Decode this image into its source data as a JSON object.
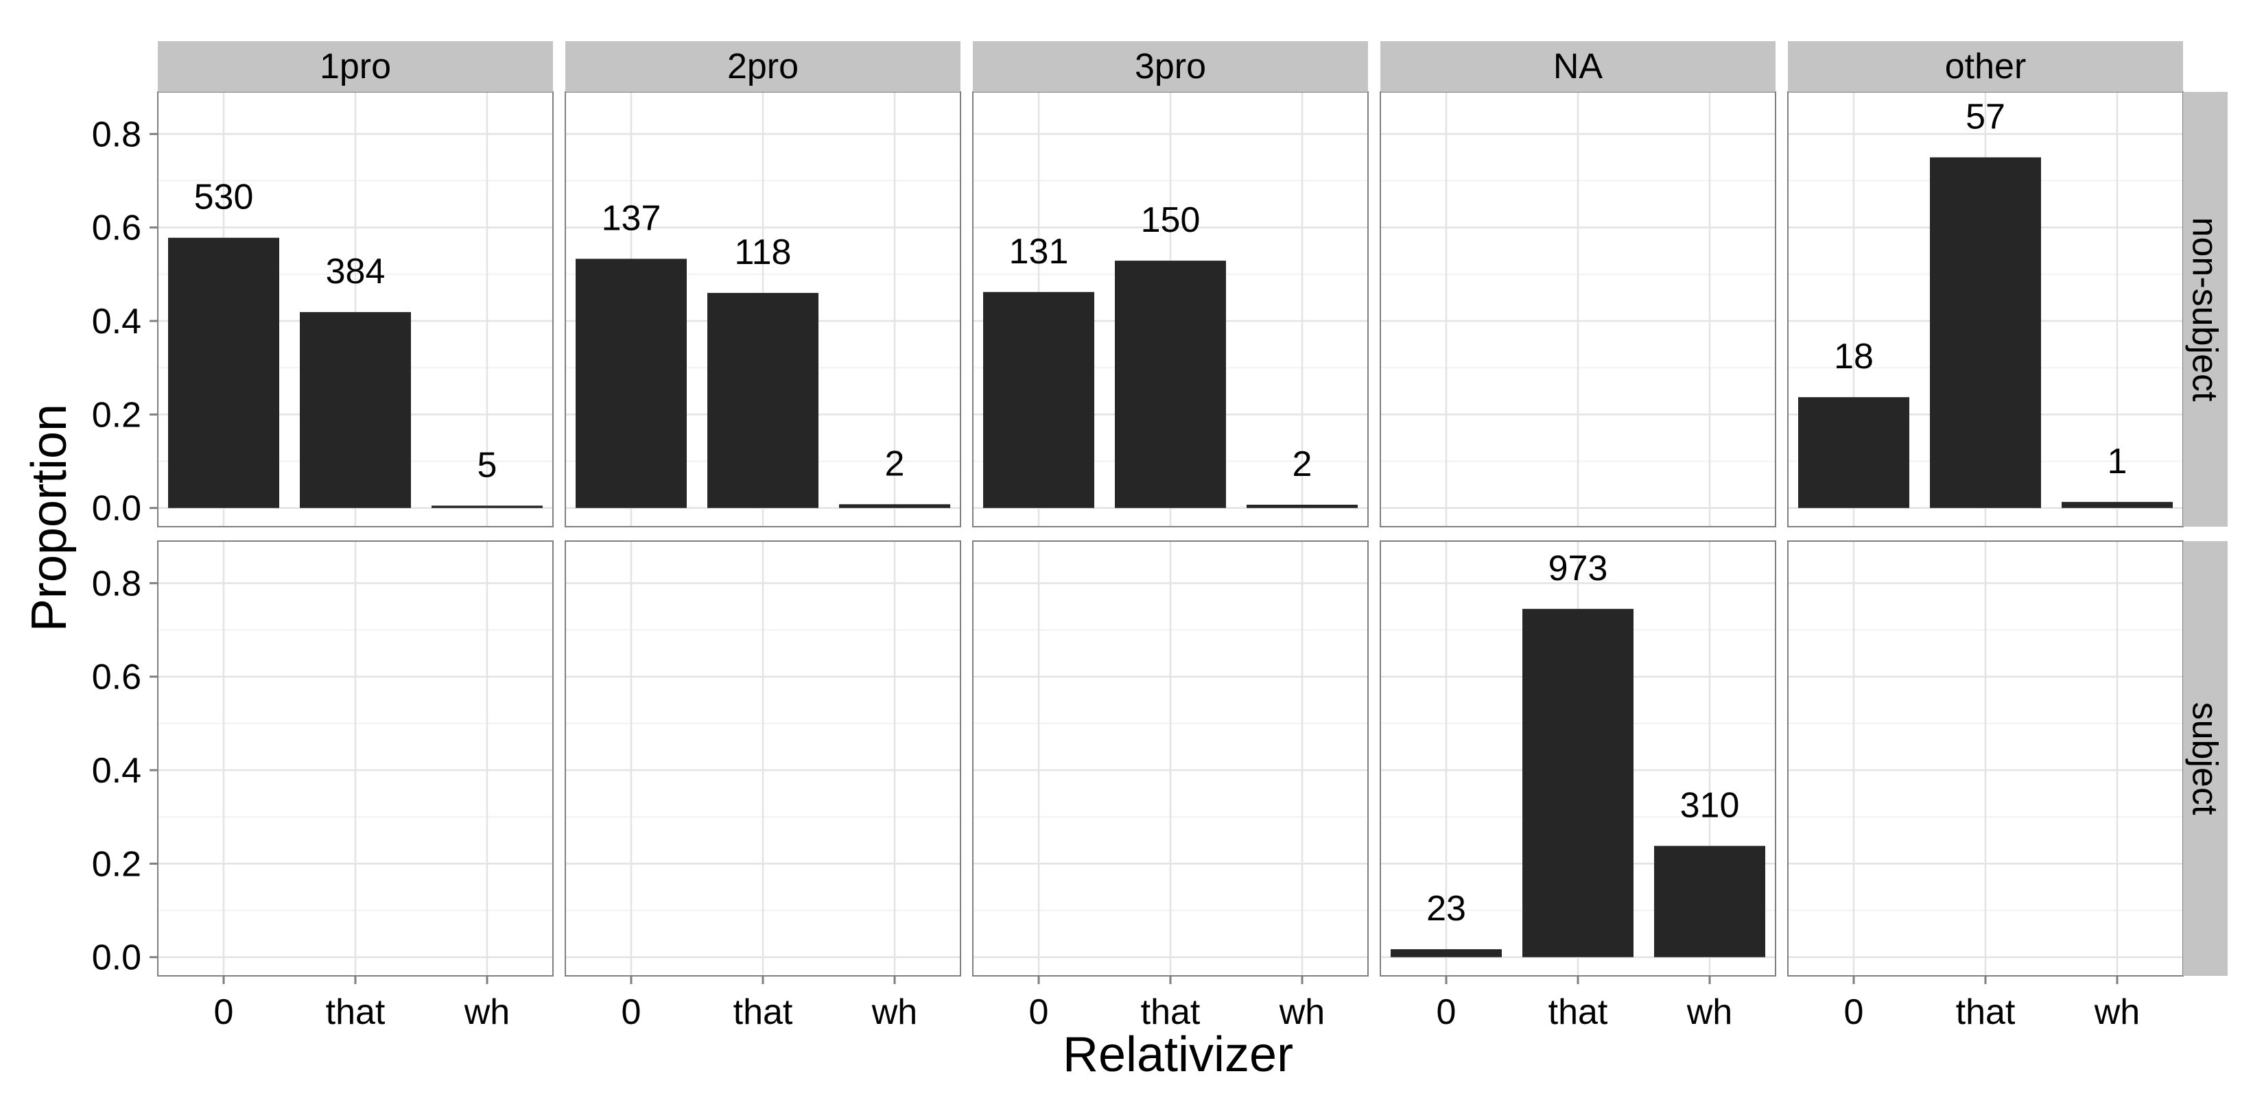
{
  "chart_data": {
    "type": "bar",
    "facet_columns": [
      "1pro",
      "2pro",
      "3pro",
      "NA",
      "other"
    ],
    "facet_rows": [
      "non-subject",
      "subject"
    ],
    "categories": [
      "0",
      "that",
      "wh"
    ],
    "xlabel": "Relativizer",
    "ylabel": "Proportion",
    "ylim": [
      -0.04,
      0.89
    ],
    "y_ticks": [
      "0.0",
      "0.2",
      "0.4",
      "0.6",
      "0.8"
    ],
    "grid": true,
    "bar_color": "#262626",
    "panels": [
      {
        "row": "non-subject",
        "col": "1pro",
        "values": [
          0.578,
          0.419,
          0.005
        ],
        "labels": [
          "530",
          "384",
          "5"
        ]
      },
      {
        "row": "non-subject",
        "col": "2pro",
        "values": [
          0.533,
          0.46,
          0.008
        ],
        "labels": [
          "137",
          "118",
          "2"
        ]
      },
      {
        "row": "non-subject",
        "col": "3pro",
        "values": [
          0.462,
          0.529,
          0.007
        ],
        "labels": [
          "131",
          "150",
          "2"
        ]
      },
      {
        "row": "non-subject",
        "col": "NA",
        "values": [],
        "labels": []
      },
      {
        "row": "non-subject",
        "col": "other",
        "values": [
          0.237,
          0.75,
          0.013
        ],
        "labels": [
          "18",
          "57",
          "1"
        ]
      },
      {
        "row": "subject",
        "col": "1pro",
        "values": [],
        "labels": []
      },
      {
        "row": "subject",
        "col": "2pro",
        "values": [],
        "labels": []
      },
      {
        "row": "subject",
        "col": "3pro",
        "values": [],
        "labels": []
      },
      {
        "row": "subject",
        "col": "NA",
        "values": [
          0.017,
          0.745,
          0.238
        ],
        "labels": [
          "23",
          "973",
          "310"
        ]
      },
      {
        "row": "subject",
        "col": "other",
        "values": [],
        "labels": []
      }
    ]
  }
}
